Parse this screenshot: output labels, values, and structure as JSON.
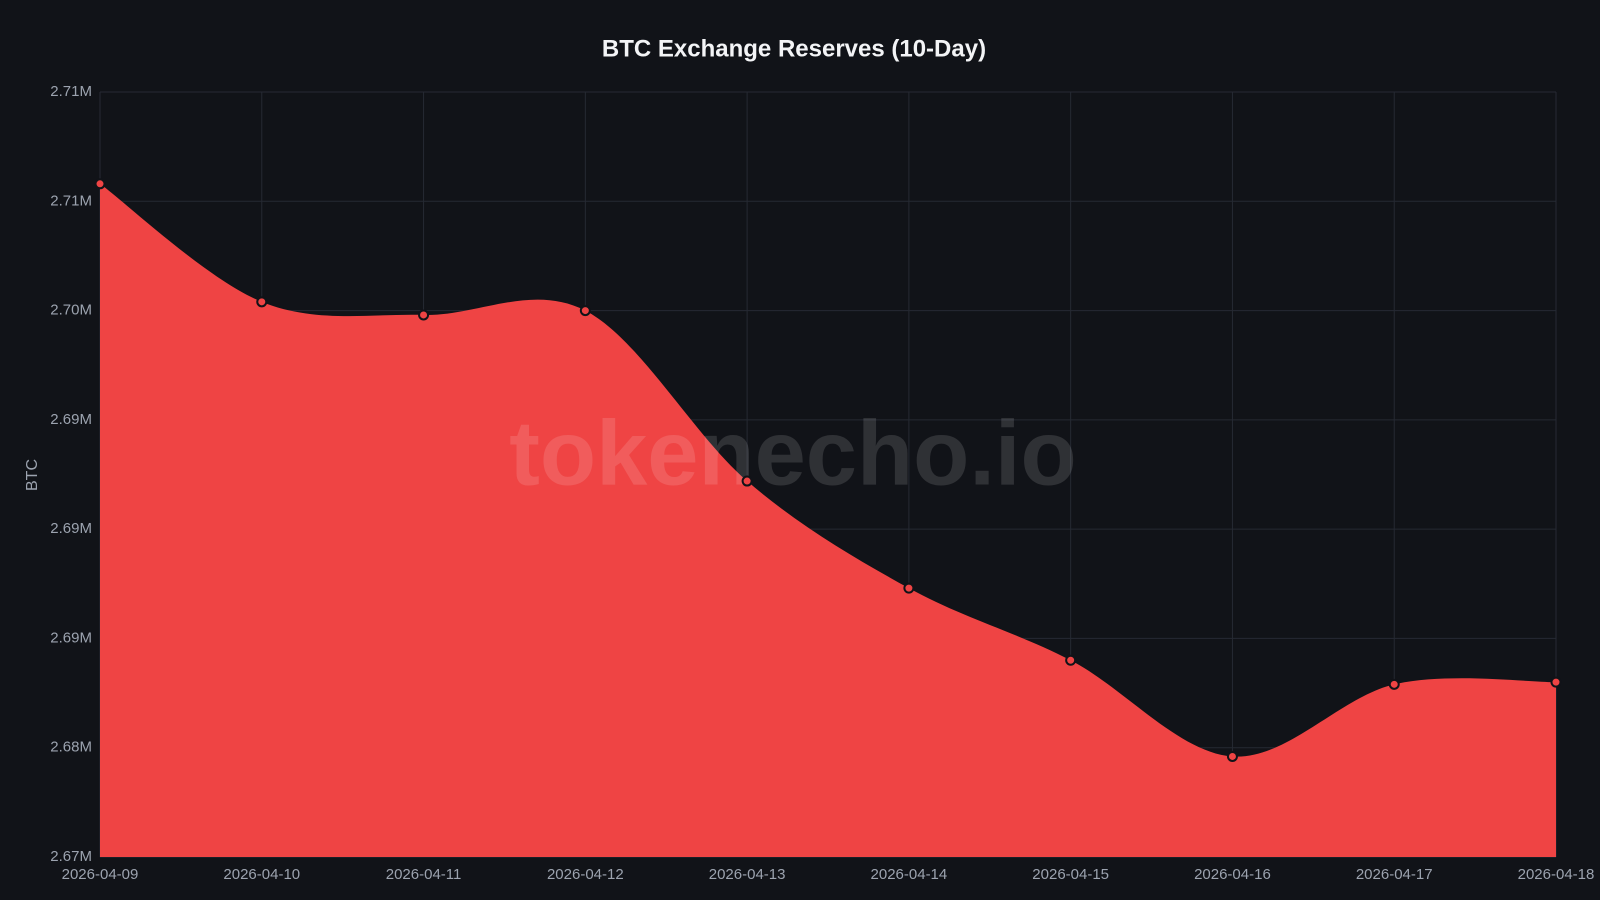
{
  "chart_data": {
    "type": "area",
    "title": "BTC Exchange Reserves (10-Day)",
    "y_label": "BTC",
    "watermark": "tokenecho.io",
    "categories": [
      "2026-04-09",
      "2026-04-10",
      "2026-04-11",
      "2026-04-12",
      "2026-04-13",
      "2026-04-14",
      "2026-04-15",
      "2026-04-16",
      "2026-04-17",
      "2026-04-18"
    ],
    "values": [
      2.7058,
      2.7004,
      2.6998,
      2.7,
      2.6922,
      2.6873,
      2.684,
      2.6796,
      2.6829,
      2.683
    ],
    "color": "#ef4444",
    "ylim": [
      2.675,
      2.71
    ],
    "yticks": [
      {
        "value": 2.675,
        "label": "2.67M"
      },
      {
        "value": 2.68,
        "label": "2.68M"
      },
      {
        "value": 2.685,
        "label": "2.69M"
      },
      {
        "value": 2.69,
        "label": "2.69M"
      },
      {
        "value": 2.695,
        "label": "2.69M"
      },
      {
        "value": 2.7,
        "label": "2.70M"
      },
      {
        "value": 2.705,
        "label": "2.71M"
      },
      {
        "value": 2.71,
        "label": "2.71M"
      }
    ],
    "grid": true
  }
}
